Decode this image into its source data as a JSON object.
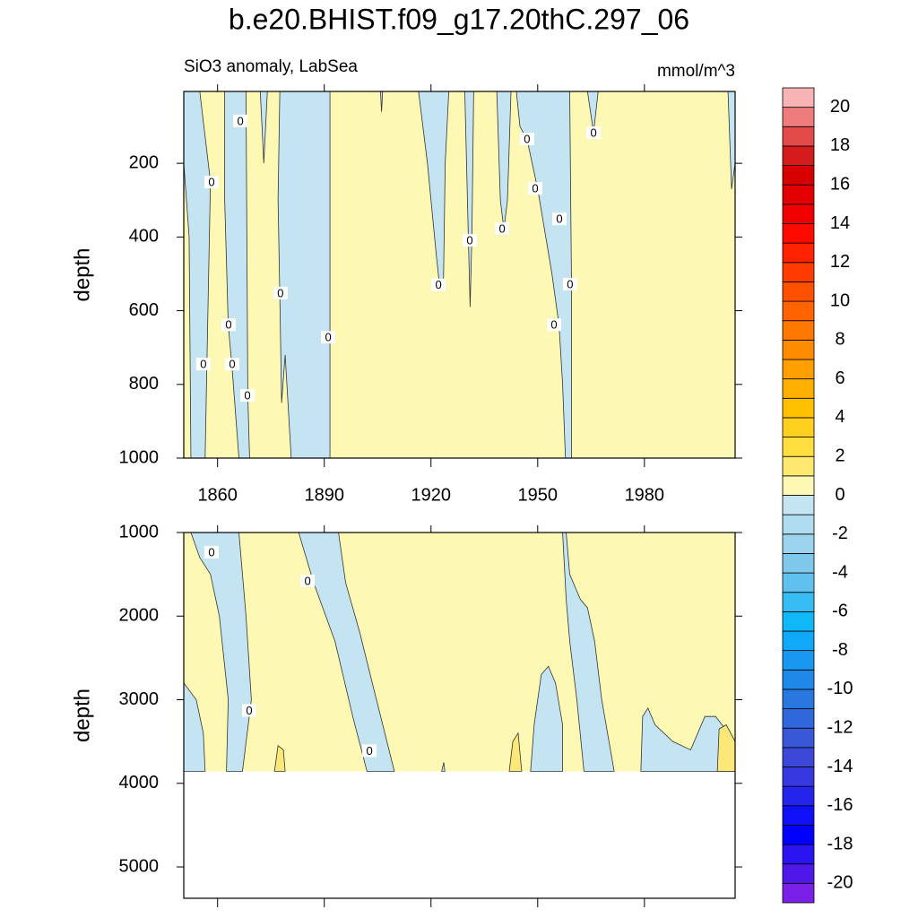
{
  "chart_data": {
    "type": "contour",
    "title": "b.e20.BHIST.f09_g17.20thC.297_06",
    "subtitle_left": "SiO3 anomaly, LabSea",
    "subtitle_right": "mmol/m^3",
    "xlim": [
      1850.5,
      2005.5
    ],
    "line_color": "#333333",
    "panels": [
      {
        "ylabel": "depth",
        "ylim": [
          5,
          1000
        ],
        "yticks": [
          200,
          400,
          600,
          800,
          1000
        ],
        "xticks": [
          1860,
          1890,
          1920,
          1950,
          1980
        ],
        "xticklabels": true,
        "regions": [
          {
            "color": "#fdf8b4",
            "x": [
              1850.5,
              2005.5,
              2005.5,
              1850.5
            ],
            "y": [
              5,
              5,
              1000,
              1000
            ]
          },
          {
            "color": "#c4e4f2",
            "x": [
              1850.5,
              1855,
              1858,
              1857,
              1856.5,
              1852.5,
              1852,
              1850.5
            ],
            "y": [
              5,
              5,
              250,
              745,
              1000,
              1000,
              400,
              200
            ]
          },
          {
            "color": "#c4e4f2",
            "x": [
              1862,
              1868,
              1868.5,
              1869,
              1866,
              1864,
              1863,
              1862
            ],
            "y": [
              5,
              5,
              830,
              1000,
              1000,
              745,
              640,
              300
            ]
          },
          {
            "color": "#c4e4f2",
            "x": [
              1872,
              1874,
              1873
            ],
            "y": [
              5,
              5,
              200
            ]
          },
          {
            "color": "#c4e4f2",
            "x": [
              1877.5,
              1891.6,
              1891.6,
              1880.7,
              1879,
              1878,
              1877.5,
              1877
            ],
            "y": [
              5,
              5,
              1000,
              1000,
              720,
              850,
              560,
              300
            ]
          },
          {
            "color": "#c4e4f2",
            "x": [
              1905.8,
              1906.4,
              1906.1
            ],
            "y": [
              5,
              5,
              60
            ]
          },
          {
            "color": "#c4e4f2",
            "x": [
              1916.5,
              1925,
              1924,
              1923.5,
              1922.5,
              1921.5,
              1919
            ],
            "y": [
              5,
              5,
              200,
              530,
              540,
              450,
              200
            ]
          },
          {
            "color": "#c4e4f2",
            "x": [
              1929.5,
              1932,
              1931.5,
              1931,
              1930.5
            ],
            "y": [
              5,
              5,
              400,
              590,
              400
            ]
          },
          {
            "color": "#c4e4f2",
            "x": [
              1938.5,
              1942.5,
              1941.5,
              1940.5,
              1939.5
            ],
            "y": [
              5,
              5,
              300,
              380,
              300
            ]
          },
          {
            "color": "#c4e4f2",
            "x": [
              1944,
              1959,
              1959.5,
              1959.5,
              1957.8,
              1957,
              1956,
              1954,
              1950,
              1947,
              1945
            ],
            "y": [
              5,
              5,
              530,
              1000,
              1000,
              800,
              640,
              500,
              270,
              135,
              100
            ]
          },
          {
            "color": "#c4e4f2",
            "x": [
              1964,
              1967,
              1965.7
            ],
            "y": [
              5,
              5,
              117
            ]
          },
          {
            "color": "#c4e4f2",
            "x": [
              2003.5,
              2005.5,
              2005.5,
              2004.5
            ],
            "y": [
              5,
              5,
              200,
              270
            ]
          }
        ],
        "contour_labels": [
          {
            "x": 1866.4,
            "y": 85,
            "label": "0"
          },
          {
            "x": 1858.3,
            "y": 251,
            "label": "0"
          },
          {
            "x": 1856,
            "y": 745,
            "label": "0"
          },
          {
            "x": 1864.1,
            "y": 745,
            "label": "0"
          },
          {
            "x": 1863.1,
            "y": 638,
            "label": "0"
          },
          {
            "x": 1868.4,
            "y": 830,
            "label": "0"
          },
          {
            "x": 1877.7,
            "y": 552,
            "label": "0"
          },
          {
            "x": 1891.1,
            "y": 672,
            "label": "0"
          },
          {
            "x": 1922.1,
            "y": 530,
            "label": "0"
          },
          {
            "x": 1930.9,
            "y": 409,
            "label": "0"
          },
          {
            "x": 1940,
            "y": 377,
            "label": "0"
          },
          {
            "x": 1947,
            "y": 134,
            "label": "0"
          },
          {
            "x": 1949.3,
            "y": 268,
            "label": "0"
          },
          {
            "x": 1956.1,
            "y": 351,
            "label": "0"
          },
          {
            "x": 1959.1,
            "y": 528,
            "label": "0"
          },
          {
            "x": 1954.6,
            "y": 638,
            "label": "0"
          },
          {
            "x": 1965.7,
            "y": 117,
            "label": "0"
          }
        ]
      },
      {
        "ylabel": "depth",
        "ylim": [
          1000,
          5375
        ],
        "yticks": [
          1000,
          2000,
          3000,
          4000,
          5000
        ],
        "xticks": [
          1860,
          1890,
          1920,
          1950,
          1980
        ],
        "xticklabels": false,
        "regions": [
          {
            "color": "#fdf8b4",
            "x": [
              1850.5,
              2005.5,
              2005.5,
              1850.5
            ],
            "y": [
              1000,
              1000,
              3856,
              3856
            ]
          },
          {
            "color": "#c4e4f2",
            "x": [
              1852.5,
              1866,
              1868,
              1869.5,
              1867,
              1862.5,
              1863,
              1860.5,
              1858,
              1855
            ],
            "y": [
              1000,
              1000,
              2000,
              3000,
              3856,
              3856,
              3000,
              2000,
              1500,
              1300
            ]
          },
          {
            "color": "#c4e4f2",
            "x": [
              1850.5,
              1854,
              1856,
              1856.5,
              1850.5
            ],
            "y": [
              2800,
              3000,
              3400,
              3856,
              3856
            ]
          },
          {
            "color": "#c4e4f2",
            "x": [
              1882.8,
              1894,
              1896,
              1900,
              1903.5,
              1909.7,
              1902,
              1898,
              1893,
              1887
            ],
            "y": [
              1000,
              1000,
              1600,
              2200,
              2800,
              3856,
              3856,
              3200,
              2300,
              1600
            ]
          },
          {
            "color": "#c4e4f2",
            "x": [
              1957,
              1958,
              1959,
              1962,
              1964,
              1966,
              1968,
              1971.5,
              1963,
              1961,
              1959,
              1958,
              1957.5
            ],
            "y": [
              1000,
              1000,
              1500,
              1800,
              1900,
              2300,
              3000,
              3856,
              3856,
              3000,
              2300,
              1800,
              1400
            ]
          },
          {
            "color": "#c4e4f2",
            "x": [
              1948,
              1949,
              1951,
              1953,
              1955,
              1957,
              1957
            ],
            "y": [
              3856,
              3300,
              2700,
              2600,
              2800,
              3300,
              3856
            ]
          },
          {
            "color": "#c4e4f2",
            "x": [
              1923,
              1923.6,
              1923.9
            ],
            "y": [
              3856,
              3750,
              3856
            ]
          },
          {
            "color": "#c4e4f2",
            "x": [
              1979,
              1979.5,
              1981,
              1983,
              1988,
              1993,
              1997,
              2000,
              2005.5,
              2005.5
            ],
            "y": [
              3856,
              3200,
              3100,
              3300,
              3500,
              3600,
              3200,
              3200,
              3500,
              3856
            ]
          },
          {
            "color": "#fbe878",
            "x": [
              1876,
              1877,
              1878.5,
              1879
            ],
            "y": [
              3856,
              3550,
              3600,
              3856
            ]
          },
          {
            "color": "#fbe878",
            "x": [
              1942,
              1943,
              1944.5,
              1945.5
            ],
            "y": [
              3856,
              3500,
              3400,
              3856
            ]
          },
          {
            "color": "#fbe878",
            "x": [
              2000.5,
              2001,
              2003,
              2005.5,
              2005.5
            ],
            "y": [
              3856,
              3350,
              3300,
              3500,
              3856
            ]
          }
        ],
        "contour_labels": [
          {
            "x": 1858.3,
            "y": 1235,
            "label": "0"
          },
          {
            "x": 1885.3,
            "y": 1578,
            "label": "0"
          },
          {
            "x": 1868.9,
            "y": 3128,
            "label": "0"
          },
          {
            "x": 1902.7,
            "y": 3610,
            "label": "0"
          }
        ]
      }
    ],
    "colorbar": {
      "levels": [
        -20,
        -19,
        -18,
        -17,
        -16,
        -15,
        -14,
        -13,
        -12,
        -11,
        -10,
        -9,
        -8,
        -7,
        -6,
        -5,
        -4,
        -3,
        -2,
        -1,
        0,
        1,
        2,
        3,
        4,
        5,
        6,
        7,
        8,
        9,
        10,
        11,
        12,
        13,
        14,
        15,
        16,
        17,
        18,
        19,
        20
      ],
      "colors": [
        "#7a20e8",
        "#5018e8",
        "#2a14f0",
        "#0000ff",
        "#1010f8",
        "#2424ec",
        "#3838e0",
        "#3c48d8",
        "#3858d8",
        "#3068dc",
        "#2878e0",
        "#2088e8",
        "#1898f0",
        "#10a8f8",
        "#10b8f8",
        "#38bcf4",
        "#60c0ee",
        "#7ec8ec",
        "#9cd4ee",
        "#b0dcf0",
        "#c4e4f2",
        "#fdf8b4",
        "#ffe870",
        "#ffdf40",
        "#ffd020",
        "#ffc000",
        "#ffb000",
        "#ffa000",
        "#ff8c00",
        "#ff7800",
        "#ff6400",
        "#ff5000",
        "#ff3c00",
        "#ff2200",
        "#ff0a00",
        "#f00000",
        "#e30000",
        "#d60000",
        "#d41c1c",
        "#e34a4a",
        "#ef7c7c",
        "#f8b4b4"
      ],
      "ticks": [
        -20,
        -18,
        -16,
        -14,
        -12,
        -10,
        -8,
        -6,
        -4,
        -2,
        0,
        2,
        4,
        6,
        8,
        10,
        12,
        14,
        16,
        18,
        20
      ]
    }
  }
}
